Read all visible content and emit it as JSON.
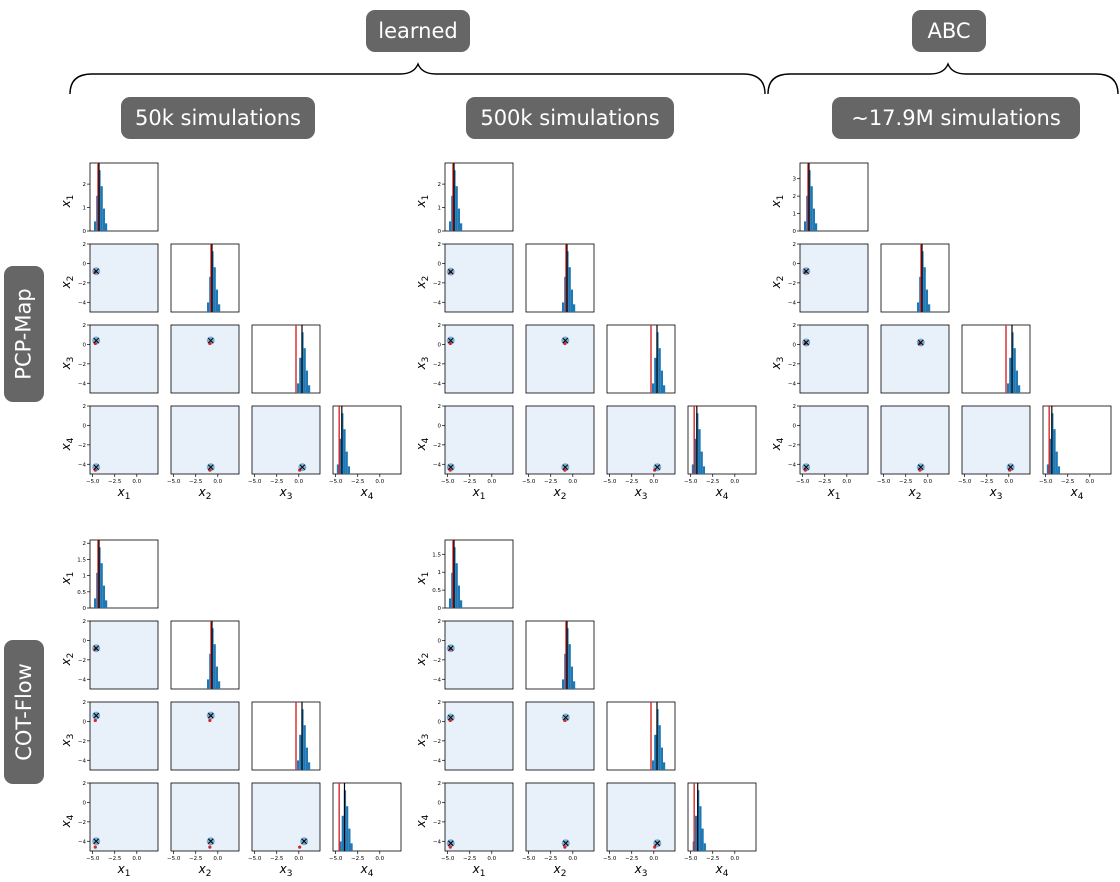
{
  "header": {
    "learned_label": "learned",
    "abc_label": "ABC"
  },
  "columns": {
    "c50k": "50k simulations",
    "c500k": "500k simulations",
    "cabc": "∼17.9M simulations"
  },
  "rows": {
    "pcp": "PCP-Map",
    "cot": "COT-Flow"
  },
  "colors": {
    "pill": "#666666",
    "hist": "#1f77b4",
    "true_line": "#d62728",
    "mean_line": "#000000",
    "density_bg": "#e8f0fa",
    "cluster": "#1f77b4"
  },
  "chart_data": {
    "type": "corner",
    "variables": [
      "x_1",
      "x_2",
      "x_3",
      "x_4"
    ],
    "axis_tick_labels": [
      "−5.0",
      "−2.5",
      "0.0"
    ],
    "offdiag_ylim": [
      -5,
      2
    ],
    "offdiag_yticks": [
      "2",
      "0",
      "−2",
      "−4"
    ],
    "offdiag_xticks": [
      -5.0,
      -2.5,
      0.0
    ],
    "true_parameter": [
      -4.7,
      -0.9,
      0.1,
      -4.6
    ],
    "panels": [
      {
        "row": "PCP-Map",
        "column": "50k simulations",
        "posterior_mean": [
          -4.6,
          -0.8,
          0.4,
          -4.3
        ],
        "diag_yticks": [
          [
            0,
            1,
            2
          ],
          [],
          [],
          []
        ],
        "diag_ymax": [
          2.9,
          1,
          1,
          1
        ]
      },
      {
        "row": "PCP-Map",
        "column": "500k simulations",
        "posterior_mean": [
          -4.65,
          -0.85,
          0.4,
          -4.3
        ],
        "diag_yticks": [
          [
            0,
            1,
            2
          ],
          [],
          [],
          []
        ],
        "diag_ymax": [
          2.9,
          1,
          1,
          1
        ]
      },
      {
        "row": "PCP-Map",
        "column": "∼17.9M simulations",
        "posterior_mean": [
          -4.6,
          -0.8,
          0.2,
          -4.3
        ],
        "diag_yticks": [
          [
            0,
            1,
            2,
            3
          ],
          [],
          [],
          []
        ],
        "diag_ymax": [
          3.9,
          1,
          1,
          1
        ]
      },
      {
        "row": "COT-Flow",
        "column": "50k simulations",
        "posterior_mean": [
          -4.6,
          -0.8,
          0.6,
          -4.0
        ],
        "diag_yticks": [
          [
            0.0,
            0.5,
            1.0,
            1.5,
            2.0
          ],
          [],
          [],
          []
        ],
        "diag_ymax": [
          2.1,
          1,
          1,
          1
        ]
      },
      {
        "row": "COT-Flow",
        "column": "500k simulations",
        "posterior_mean": [
          -4.65,
          -0.8,
          0.4,
          -4.2
        ],
        "diag_yticks": [
          [
            0.0,
            0.5,
            1.0,
            1.5
          ],
          [],
          [],
          []
        ],
        "diag_ymax": [
          1.9,
          1,
          1,
          1
        ]
      }
    ]
  }
}
